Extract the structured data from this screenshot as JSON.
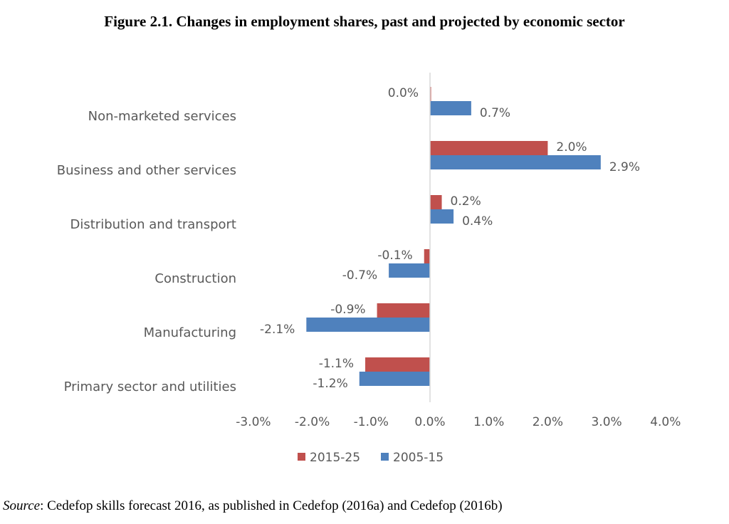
{
  "title": "Figure 2.1. Changes in employment shares, past and projected by economic sector",
  "source": {
    "label": "Source",
    "text": ": Cedefop skills forecast 2016, as published in Cedefop (2016a) and Cedefop (2016b)"
  },
  "chart_data": {
    "type": "bar",
    "orientation": "horizontal",
    "title": "",
    "xlabel": "",
    "ylabel": "",
    "categories": [
      "Non-marketed services",
      "Business and other services",
      "Distribution and transport",
      "Construction",
      "Manufacturing",
      "Primary sector and utilities"
    ],
    "series": [
      {
        "name": "2015-25",
        "color": "#C0504D",
        "values": [
          0.0,
          2.0,
          0.2,
          -0.1,
          -0.9,
          -1.1
        ],
        "labels": [
          "0.0%",
          "2.0%",
          "0.2%",
          "-0.1%",
          "-0.9%",
          "-1.1%"
        ]
      },
      {
        "name": "2005-15",
        "color": "#4F81BD",
        "values": [
          0.7,
          2.9,
          0.4,
          -0.7,
          -2.1,
          -1.2
        ],
        "labels": [
          "0.7%",
          "2.9%",
          "0.4%",
          "-0.7%",
          "-2.1%",
          "-1.2%"
        ]
      }
    ],
    "xlim": [
      -3.0,
      4.0
    ],
    "xticks": [
      -3,
      -2,
      -1,
      0,
      1,
      2,
      3,
      4
    ],
    "xtick_labels": [
      "-3.0%",
      "-2.0%",
      "-1.0%",
      "0.0%",
      "1.0%",
      "2.0%",
      "3.0%",
      "4.0%"
    ],
    "grid": false,
    "legend": "bottom",
    "axis_color": "#D9D9D9"
  }
}
